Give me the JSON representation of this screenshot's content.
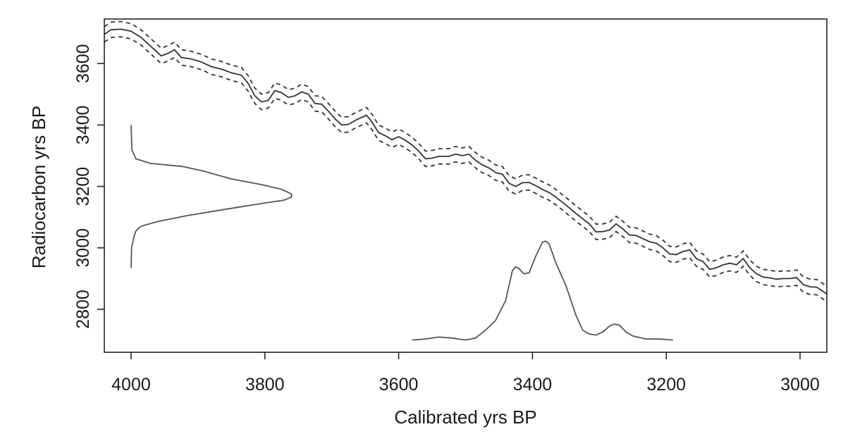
{
  "chart_data": {
    "type": "line",
    "title": "",
    "xlabel": "Calibrated yrs BP",
    "ylabel": "Radiocarbon yrs BP",
    "xlim": [
      4040,
      2960
    ],
    "ylim": [
      2660,
      3745
    ],
    "x_ticks": [
      4000,
      3800,
      3600,
      3400,
      3200,
      3000
    ],
    "y_ticks": [
      2800,
      3000,
      3200,
      3400,
      3600
    ],
    "x_reversed": true,
    "grid": false,
    "legend": "none",
    "curve_band_halfwidth": 25,
    "series": [
      {
        "role": "calibration-curve",
        "style": "solid",
        "color": "#333333",
        "points": [
          [
            4040,
            3695
          ],
          [
            4030,
            3710
          ],
          [
            4015,
            3712
          ],
          [
            4000,
            3705
          ],
          [
            3985,
            3685
          ],
          [
            3970,
            3655
          ],
          [
            3955,
            3625
          ],
          [
            3945,
            3633
          ],
          [
            3935,
            3645
          ],
          [
            3925,
            3620
          ],
          [
            3910,
            3615
          ],
          [
            3895,
            3605
          ],
          [
            3880,
            3590
          ],
          [
            3865,
            3582
          ],
          [
            3850,
            3570
          ],
          [
            3835,
            3562
          ],
          [
            3825,
            3535
          ],
          [
            3815,
            3495
          ],
          [
            3805,
            3475
          ],
          [
            3795,
            3480
          ],
          [
            3785,
            3512
          ],
          [
            3775,
            3505
          ],
          [
            3765,
            3490
          ],
          [
            3755,
            3495
          ],
          [
            3745,
            3508
          ],
          [
            3735,
            3500
          ],
          [
            3725,
            3470
          ],
          [
            3715,
            3468
          ],
          [
            3705,
            3445
          ],
          [
            3695,
            3420
          ],
          [
            3685,
            3400
          ],
          [
            3675,
            3402
          ],
          [
            3665,
            3415
          ],
          [
            3655,
            3425
          ],
          [
            3648,
            3432
          ],
          [
            3640,
            3410
          ],
          [
            3630,
            3375
          ],
          [
            3620,
            3365
          ],
          [
            3610,
            3352
          ],
          [
            3600,
            3362
          ],
          [
            3590,
            3350
          ],
          [
            3580,
            3335
          ],
          [
            3570,
            3315
          ],
          [
            3560,
            3290
          ],
          [
            3550,
            3292
          ],
          [
            3540,
            3298
          ],
          [
            3525,
            3298
          ],
          [
            3515,
            3305
          ],
          [
            3505,
            3300
          ],
          [
            3495,
            3305
          ],
          [
            3485,
            3285
          ],
          [
            3475,
            3270
          ],
          [
            3465,
            3260
          ],
          [
            3455,
            3245
          ],
          [
            3445,
            3240
          ],
          [
            3435,
            3210
          ],
          [
            3425,
            3200
          ],
          [
            3415,
            3212
          ],
          [
            3405,
            3213
          ],
          [
            3395,
            3202
          ],
          [
            3385,
            3190
          ],
          [
            3375,
            3180
          ],
          [
            3365,
            3165
          ],
          [
            3355,
            3148
          ],
          [
            3345,
            3130
          ],
          [
            3335,
            3112
          ],
          [
            3325,
            3095
          ],
          [
            3315,
            3078
          ],
          [
            3305,
            3052
          ],
          [
            3295,
            3053
          ],
          [
            3285,
            3058
          ],
          [
            3275,
            3078
          ],
          [
            3265,
            3062
          ],
          [
            3255,
            3042
          ],
          [
            3245,
            3040
          ],
          [
            3235,
            3030
          ],
          [
            3225,
            3020
          ],
          [
            3215,
            3015
          ],
          [
            3205,
            3000
          ],
          [
            3195,
            2980
          ],
          [
            3185,
            2978
          ],
          [
            3175,
            2988
          ],
          [
            3165,
            2993
          ],
          [
            3155,
            2965
          ],
          [
            3145,
            2955
          ],
          [
            3135,
            2930
          ],
          [
            3125,
            2935
          ],
          [
            3115,
            2945
          ],
          [
            3105,
            2950
          ],
          [
            3095,
            2945
          ],
          [
            3085,
            2965
          ],
          [
            3075,
            2935
          ],
          [
            3065,
            2915
          ],
          [
            3055,
            2905
          ],
          [
            3045,
            2902
          ],
          [
            3035,
            2898
          ],
          [
            3025,
            2900
          ],
          [
            3015,
            2900
          ],
          [
            3005,
            2903
          ],
          [
            2995,
            2880
          ],
          [
            2985,
            2873
          ],
          [
            2975,
            2872
          ],
          [
            2960,
            2850
          ]
        ]
      },
      {
        "role": "radiocarbon-density",
        "style": "solid",
        "color": "#555555",
        "orientation": "vertical",
        "baseline_x": 4000,
        "peak_x": 3760,
        "points": [
          [
            3400,
            0.0
          ],
          [
            3320,
            0.005
          ],
          [
            3290,
            0.03
          ],
          [
            3275,
            0.12
          ],
          [
            3265,
            0.32
          ],
          [
            3250,
            0.45
          ],
          [
            3225,
            0.62
          ],
          [
            3205,
            0.82
          ],
          [
            3190,
            0.94
          ],
          [
            3175,
            1.0
          ],
          [
            3165,
            1.0
          ],
          [
            3155,
            0.95
          ],
          [
            3145,
            0.82
          ],
          [
            3125,
            0.58
          ],
          [
            3105,
            0.35
          ],
          [
            3085,
            0.16
          ],
          [
            3070,
            0.06
          ],
          [
            3055,
            0.03
          ],
          [
            3040,
            0.02
          ],
          [
            3000,
            0.003
          ],
          [
            2935,
            0.0
          ]
        ]
      },
      {
        "role": "calibrated-density",
        "style": "solid",
        "color": "#555555",
        "orientation": "horizontal",
        "baseline_y": 2700,
        "peak_y": 3022,
        "points": [
          [
            3580,
            0.0
          ],
          [
            3560,
            0.01
          ],
          [
            3540,
            0.03
          ],
          [
            3520,
            0.02
          ],
          [
            3500,
            0.0
          ],
          [
            3485,
            0.02
          ],
          [
            3470,
            0.1
          ],
          [
            3455,
            0.2
          ],
          [
            3440,
            0.4
          ],
          [
            3430,
            0.7
          ],
          [
            3425,
            0.74
          ],
          [
            3420,
            0.72
          ],
          [
            3413,
            0.67
          ],
          [
            3405,
            0.68
          ],
          [
            3395,
            0.85
          ],
          [
            3385,
            0.99
          ],
          [
            3380,
            1.0
          ],
          [
            3375,
            0.97
          ],
          [
            3365,
            0.78
          ],
          [
            3350,
            0.55
          ],
          [
            3335,
            0.25
          ],
          [
            3325,
            0.1
          ],
          [
            3315,
            0.06
          ],
          [
            3305,
            0.05
          ],
          [
            3295,
            0.08
          ],
          [
            3285,
            0.14
          ],
          [
            3278,
            0.16
          ],
          [
            3270,
            0.15
          ],
          [
            3260,
            0.08
          ],
          [
            3250,
            0.04
          ],
          [
            3230,
            0.01
          ],
          [
            3210,
            0.01
          ],
          [
            3190,
            0.0
          ]
        ]
      }
    ]
  }
}
